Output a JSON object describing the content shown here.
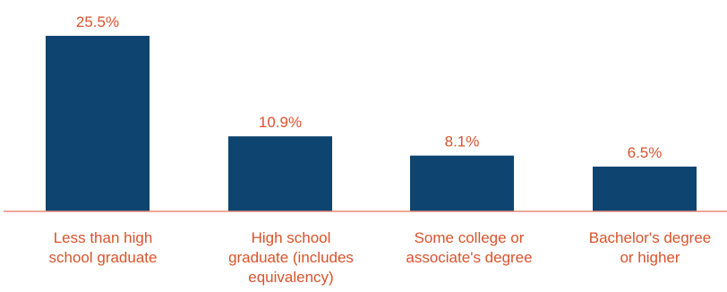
{
  "chart_data": {
    "type": "bar",
    "title": "",
    "xlabel": "",
    "ylabel": "",
    "categories": [
      [
        "Less than high",
        "school graduate"
      ],
      [
        "High school",
        "graduate (includes",
        "equivalency)"
      ],
      [
        "Some college or",
        "associate's degree"
      ],
      [
        "Bachelor's degree",
        "or higher"
      ]
    ],
    "values": [
      25.5,
      10.9,
      8.1,
      6.5
    ],
    "data_labels": [
      "25.5%",
      "10.9%",
      "8.1%",
      "6.5%"
    ],
    "value_unit": "%",
    "ylim": [
      0,
      25.5
    ],
    "grid": false,
    "legend": "none",
    "colors": {
      "bar": "#0d4570",
      "data_label": "#d9532c",
      "axis_line": "#e58a7a",
      "category_label": "#d9532c"
    }
  }
}
